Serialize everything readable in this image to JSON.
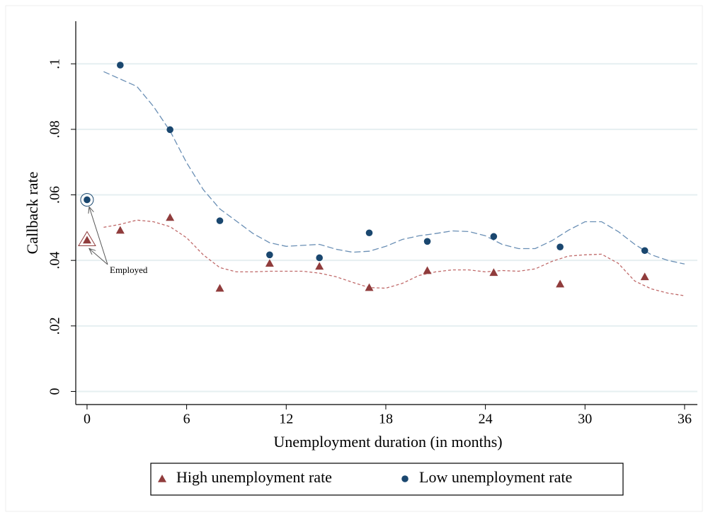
{
  "chart_data": {
    "type": "scatter",
    "xlabel": "Unemployment duration (in months)",
    "ylabel": "Callback rate",
    "annotation": "Employed",
    "xlim": [
      -0.68,
      36.77
    ],
    "ylim": [
      -0.004,
      0.113
    ],
    "xticks": [
      0,
      6,
      12,
      18,
      24,
      30,
      36
    ],
    "yticks": [
      0,
      {
        "value": 0.02,
        "label": ".02"
      },
      {
        "value": 0.04,
        "label": ".04"
      },
      {
        "value": 0.06,
        "label": ".06"
      },
      {
        "value": 0.08,
        "label": ".08"
      },
      {
        "value": 0.1,
        "label": ".1"
      }
    ],
    "grid": true,
    "series": [
      {
        "name": "High unemployment rate",
        "color": "#903c3c",
        "marker": "triangle",
        "x": [
          0,
          2,
          5,
          8,
          11,
          14,
          17,
          20.5,
          24.5,
          28.5,
          33.6
        ],
        "values": [
          0.0462,
          0.0492,
          0.0531,
          0.0315,
          0.0391,
          0.0382,
          0.0317,
          0.0369,
          0.0363,
          0.0328,
          0.035
        ]
      },
      {
        "name": "Low unemployment rate",
        "color": "#1a476f",
        "marker": "circle",
        "x": [
          0,
          2,
          5,
          8,
          11,
          14,
          17,
          20.5,
          24.5,
          28.5,
          33.6
        ],
        "values": [
          0.0585,
          0.0996,
          0.0799,
          0.0521,
          0.0417,
          0.0408,
          0.0484,
          0.0458,
          0.0473,
          0.0441,
          0.043
        ]
      }
    ],
    "fits": [
      {
        "color": "#c06a6a",
        "x": [
          1,
          2,
          3,
          4,
          5,
          6,
          7,
          8,
          9,
          10,
          11,
          12,
          13,
          14,
          15,
          16,
          17,
          18,
          19,
          20,
          21,
          22,
          23,
          24,
          25,
          26,
          27,
          28,
          29,
          30,
          31,
          32,
          33,
          34,
          35,
          36
        ],
        "values": [
          0.0501,
          0.051,
          0.0523,
          0.0518,
          0.0503,
          0.0469,
          0.0417,
          0.0378,
          0.0365,
          0.0365,
          0.0367,
          0.0367,
          0.0367,
          0.0361,
          0.035,
          0.0333,
          0.0317,
          0.0315,
          0.033,
          0.0354,
          0.0365,
          0.0371,
          0.0371,
          0.0365,
          0.0369,
          0.0367,
          0.0374,
          0.0397,
          0.0413,
          0.0417,
          0.0419,
          0.0391,
          0.0337,
          0.0313,
          0.03,
          0.0292
        ]
      },
      {
        "color": "#6a8fb5",
        "x": [
          1,
          3,
          4,
          5,
          6,
          7,
          8,
          9,
          10,
          11,
          12,
          14,
          15,
          16,
          17,
          18,
          19,
          20,
          21,
          22,
          23,
          24,
          25,
          26,
          27,
          28,
          29,
          30,
          31,
          32,
          33,
          34,
          35,
          36
        ],
        "values": [
          0.0976,
          0.0931,
          0.087,
          0.0795,
          0.0698,
          0.0616,
          0.0557,
          0.052,
          0.0482,
          0.0454,
          0.0443,
          0.0449,
          0.0434,
          0.0425,
          0.0428,
          0.0443,
          0.0464,
          0.0475,
          0.0482,
          0.049,
          0.0488,
          0.0475,
          0.0449,
          0.0436,
          0.0436,
          0.046,
          0.0492,
          0.0518,
          0.0518,
          0.0488,
          0.0449,
          0.0417,
          0.04,
          0.0389
        ]
      }
    ]
  }
}
